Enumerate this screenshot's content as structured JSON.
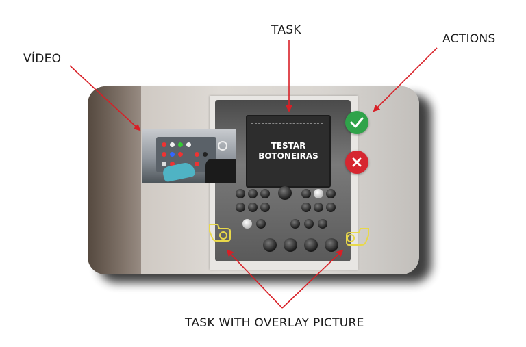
{
  "labels": {
    "video": "VÍDEO",
    "task": "TASK",
    "actions": "ACTIONS",
    "overlay": "TASK WITH OVERLAY PICTURE"
  },
  "screen": {
    "line1": "TESTAR",
    "line2": "BOTONEIRAS"
  },
  "icons": {
    "confirm": "check-icon",
    "cancel": "close-icon",
    "overlay_left": "hand-pointer-icon",
    "overlay_right": "hand-pointer-icon"
  },
  "colors": {
    "confirm": "#2fa34a",
    "cancel": "#d62630",
    "arrow": "#d81f26",
    "overlay_hand": "#e8d84a",
    "video_glove": "#4fb3c4"
  }
}
